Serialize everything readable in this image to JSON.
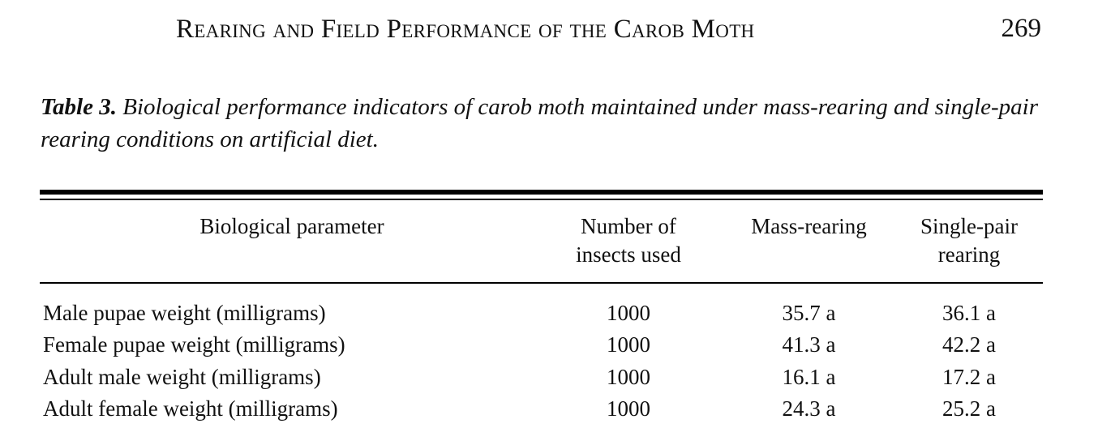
{
  "running_head": {
    "title": "Rearing and Field Performance of the Carob Moth",
    "page_number": "269"
  },
  "caption": {
    "label": "Table 3.",
    "text": "Biological performance indicators of carob moth maintained under mass-rearing and single-pair rearing conditions on artificial diet."
  },
  "table": {
    "headers": {
      "parameter": "Biological parameter",
      "number_line1": "Number of",
      "number_line2": "insects used",
      "mass": "Mass-rearing",
      "single_line1": "Single-pair",
      "single_line2": "rearing"
    },
    "rows": [
      {
        "parameter": "Male pupae weight (milligrams)",
        "number": "1000",
        "mass": "35.7 a",
        "single": "36.1 a"
      },
      {
        "parameter": "Female pupae weight (milligrams)",
        "number": "1000",
        "mass": "41.3 a",
        "single": "42.2 a"
      },
      {
        "parameter": "Adult male weight (milligrams)",
        "number": "1000",
        "mass": "16.1 a",
        "single": "17.2 a"
      },
      {
        "parameter": "Adult female weight (milligrams)",
        "number": "1000",
        "mass": "24.3 a",
        "single": "25.2 a"
      }
    ]
  }
}
